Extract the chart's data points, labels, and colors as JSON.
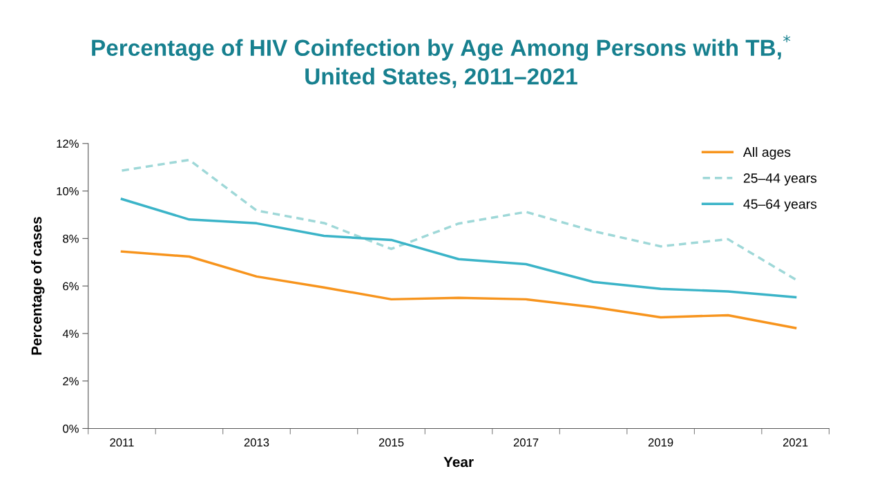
{
  "chart_data": {
    "type": "line",
    "title": "Percentage of HIV Coinfection by Age Among Persons with TB,$^{*}$\nUnited States, 2011–2021",
    "xlabel": "Year",
    "ylabel": "Percentage of cases",
    "categories": [
      "2011",
      null,
      "2013",
      null,
      "2015",
      null,
      "2017",
      null,
      "2019",
      null,
      "2021"
    ],
    "series": [
      {
        "name": "All ages",
        "color": "#f7941d",
        "line_style": "solid",
        "values": [
          7.45,
          7.24,
          6.4,
          5.94,
          5.44,
          5.5,
          5.44,
          5.11,
          4.68,
          4.77,
          4.23
        ]
      },
      {
        "name": "25–44 years",
        "color": "#9fd8d8",
        "line_style": "dashed",
        "values": [
          10.86,
          11.31,
          9.18,
          8.65,
          7.56,
          8.63,
          9.12,
          8.31,
          7.67,
          7.97,
          6.28
        ]
      },
      {
        "name": "45–64 years",
        "color": "#3bb4c8",
        "line_style": "solid",
        "values": [
          9.66,
          8.8,
          8.64,
          8.11,
          7.94,
          7.13,
          6.92,
          6.17,
          5.88,
          5.77,
          5.53
        ]
      }
    ],
    "ylim": [
      0,
      12
    ],
    "yticks": [
      {
        "value": 0,
        "label": "0%"
      },
      {
        "value": 2,
        "label": "2%"
      },
      {
        "value": 4,
        "label": "4%"
      },
      {
        "value": 6,
        "label": "6%"
      },
      {
        "value": 8,
        "label": "8%"
      },
      {
        "value": 10,
        "label": "10%"
      },
      {
        "value": 12,
        "label": "12%"
      }
    ],
    "grid": false,
    "legend": "top right",
    "marker": "none"
  }
}
